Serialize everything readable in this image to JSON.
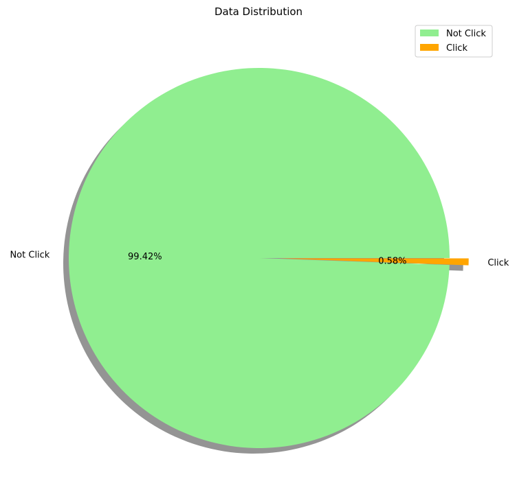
{
  "chart_data": {
    "type": "pie",
    "title": "Data Distribution",
    "categories": [
      "Not Click",
      "Click"
    ],
    "values": [
      99.42,
      0.58
    ],
    "value_labels": [
      "99.42%",
      "0.58%"
    ],
    "colors": [
      "#90ee90",
      "#ffa500"
    ],
    "explode": [
      0,
      0.1
    ],
    "shadow": true,
    "legend": {
      "position": "top-right",
      "entries": [
        "Not Click",
        "Click"
      ]
    }
  }
}
